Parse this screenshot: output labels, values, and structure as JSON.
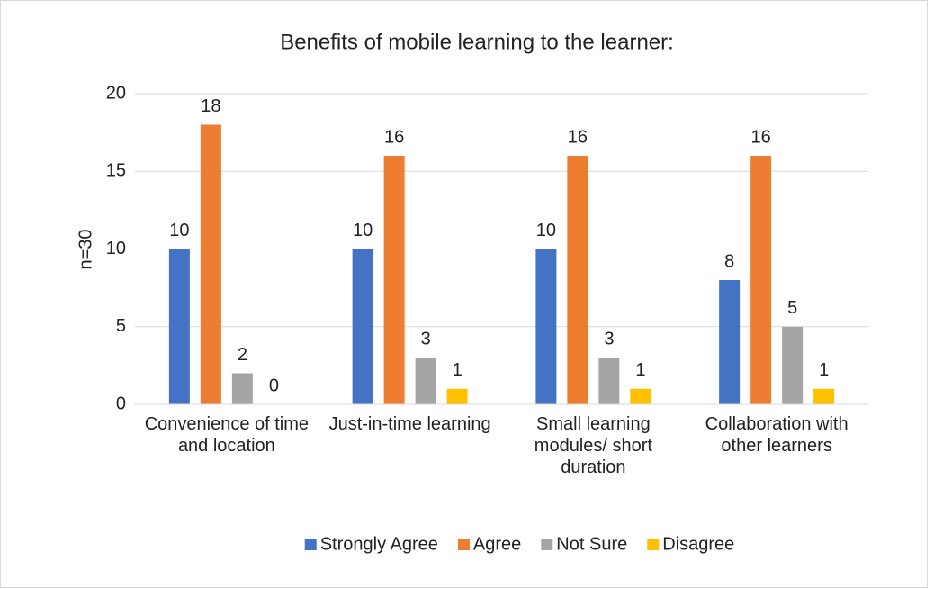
{
  "chart_data": {
    "type": "bar",
    "title": "Benefits of mobile learning to the learner:",
    "y_label": "n=30",
    "categories": [
      "Convenience of time and location",
      "Just-in-time learning",
      "Small learning modules/ short duration",
      "Collaboration with other learners"
    ],
    "series": [
      {
        "name": "Strongly Agree",
        "color": "#4472c4",
        "values": [
          10,
          10,
          10,
          8
        ]
      },
      {
        "name": "Agree",
        "color": "#ed7d31",
        "values": [
          18,
          16,
          16,
          16
        ]
      },
      {
        "name": "Not Sure",
        "color": "#a5a5a5",
        "values": [
          2,
          3,
          3,
          5
        ]
      },
      {
        "name": "Disagree",
        "color": "#ffc000",
        "values": [
          0,
          1,
          1,
          1
        ]
      }
    ],
    "ylim": [
      0,
      20
    ],
    "yticks": [
      0,
      5,
      10,
      15,
      20
    ],
    "grid": true,
    "legend": "bottom"
  }
}
